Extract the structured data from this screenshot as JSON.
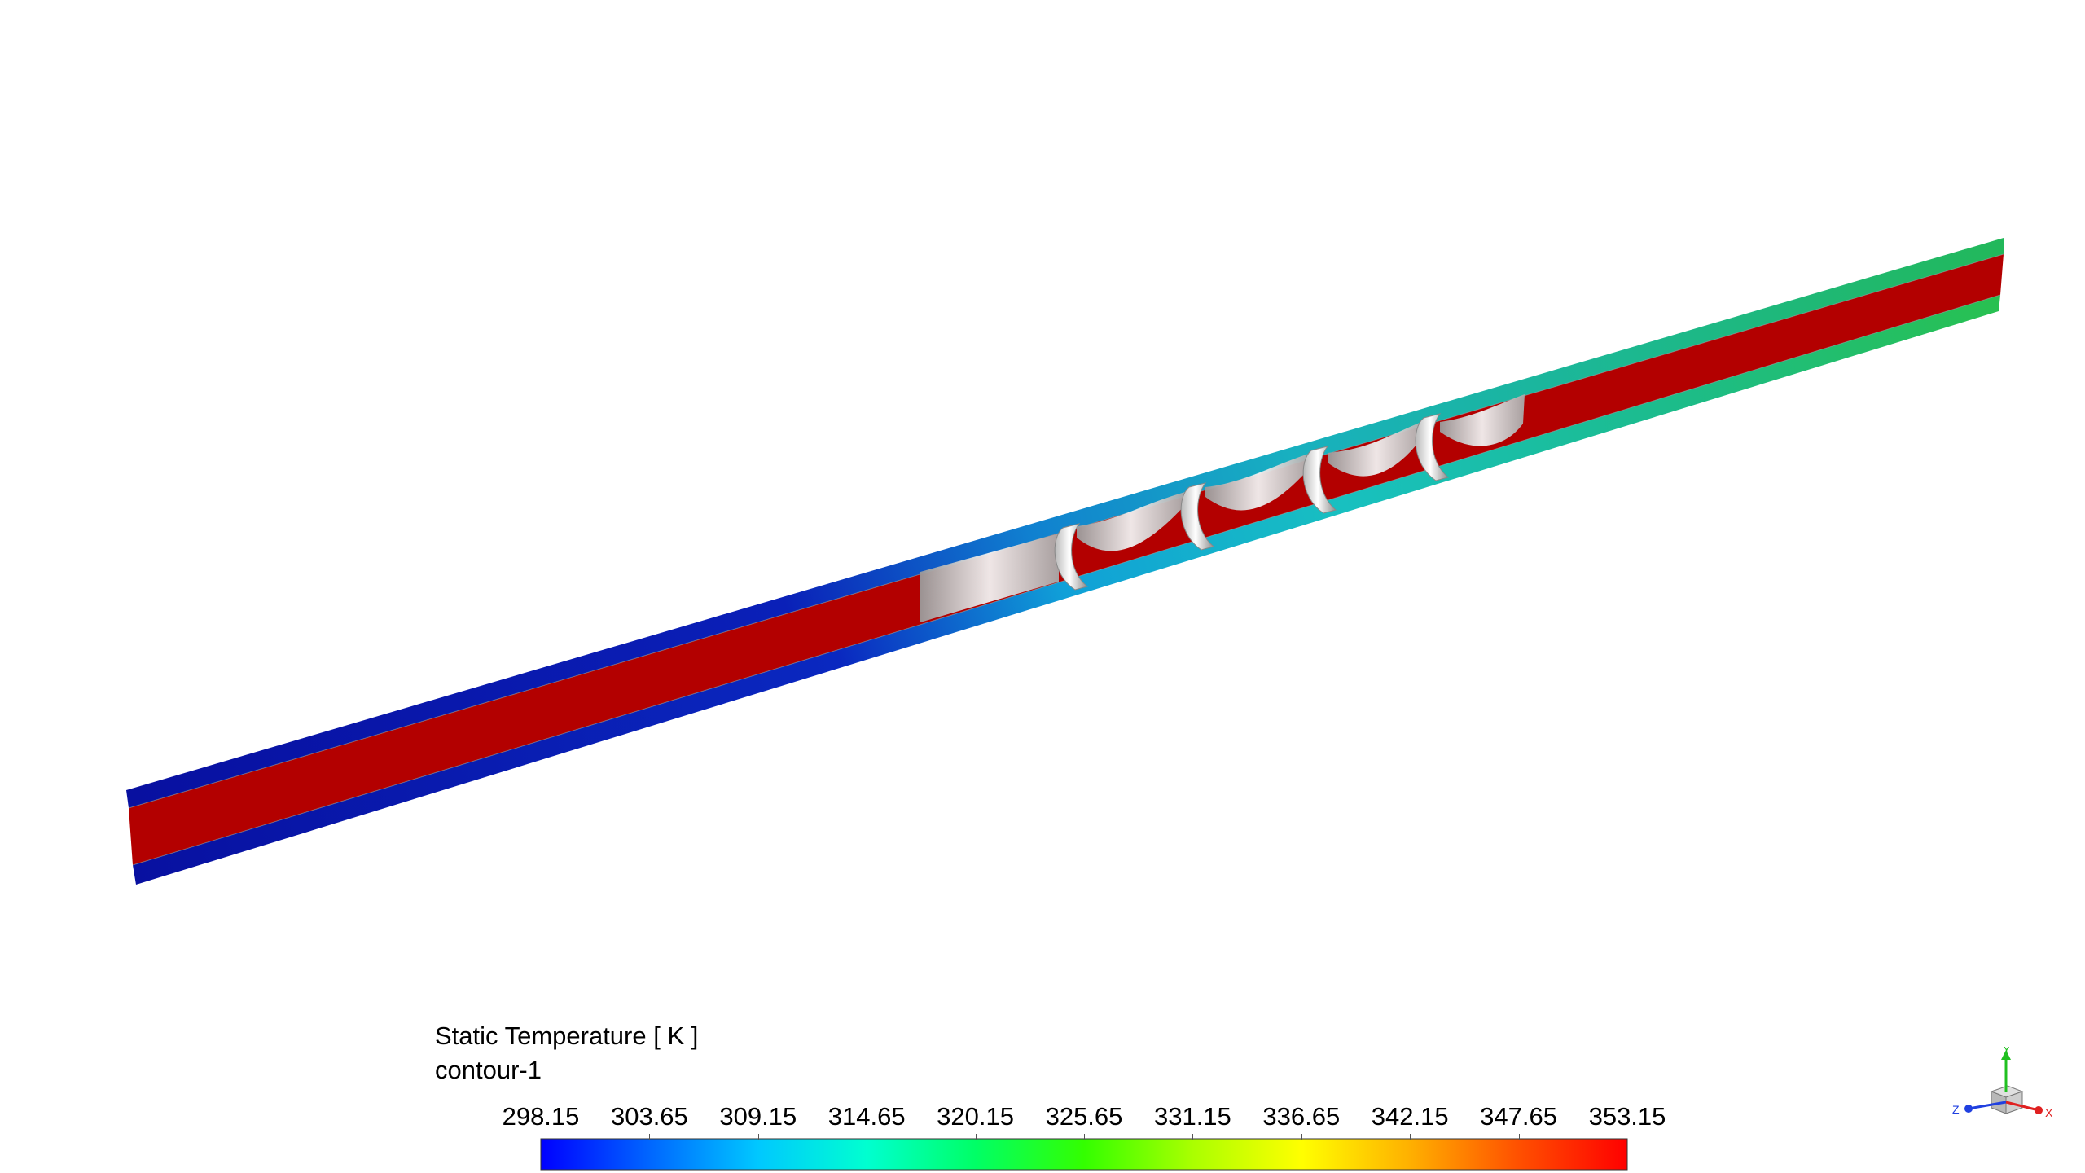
{
  "legend": {
    "title": "Static Temperature [ K ]",
    "subtitle": "contour-1",
    "tick_labels": [
      "298.15",
      "303.65",
      "309.15",
      "314.65",
      "320.15",
      "325.65",
      "331.15",
      "336.65",
      "342.15",
      "347.65",
      "353.15"
    ],
    "min": 298.15,
    "max": 353.15,
    "colormap": [
      "#0000ff",
      "#0066ff",
      "#00c8ff",
      "#00ffd0",
      "#00ff66",
      "#33ff00",
      "#aaff00",
      "#ffff00",
      "#ffb000",
      "#ff5000",
      "#ff0000"
    ]
  },
  "triad": {
    "x_label": "X",
    "y_label": "Y",
    "z_label": "Z",
    "x_color": "#e02020",
    "y_color": "#20c020",
    "z_color": "#2040e0"
  },
  "scene": {
    "core_color": "#b30000",
    "inlet_wall_color": "#0a14a8",
    "outlet_wall_color": "#22b86a",
    "insert_color": "#d8d8d8"
  }
}
